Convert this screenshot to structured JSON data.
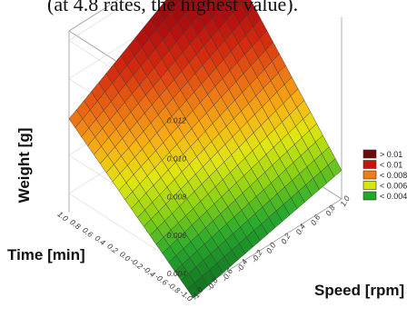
{
  "caption": "(at 4.8 rates, the highest value).",
  "chart_data": {
    "type": "surface3d",
    "title": "",
    "xlabel": "Speed [rpm]",
    "ylabel": "Time [min]",
    "zlabel": "Weight [g]",
    "x_ticks": [
      "-1.0",
      "-0.8",
      "-0.6",
      "-0.4",
      "-0.2",
      "0.0",
      "0.2",
      "0.4",
      "0.6",
      "0.8",
      "1.0"
    ],
    "y_ticks": [
      "-1.0",
      "-0.8",
      "-0.6",
      "-0.4",
      "-0.2",
      "0.0",
      "0.2",
      "0.4",
      "0.6",
      "0.8",
      "1.0"
    ],
    "z_ticks": [
      "0.004",
      "0.006",
      "0.008",
      "0.010",
      "0.012"
    ],
    "xlim": [
      -1,
      1
    ],
    "ylim": [
      -1,
      1
    ],
    "zlim": [
      0.003,
      0.0125
    ],
    "grid": true,
    "legend_position": "right",
    "surface_corners": [
      {
        "x": -1,
        "y": -1,
        "z": 0.0027
      },
      {
        "x": 1,
        "y": -1,
        "z": 0.0045
      },
      {
        "x": -1,
        "y": 1,
        "z": 0.0079
      },
      {
        "x": 1,
        "y": 1,
        "z": 0.0125
      }
    ],
    "legend": [
      {
        "label": "> 0.01",
        "color": "#6b0a0a"
      },
      {
        "label": "< 0.01",
        "color": "#c8140f"
      },
      {
        "label": "< 0.008",
        "color": "#f07d18"
      },
      {
        "label": "< 0.006",
        "color": "#d4e60f"
      },
      {
        "label": "< 0.004",
        "color": "#26a626"
      }
    ]
  }
}
